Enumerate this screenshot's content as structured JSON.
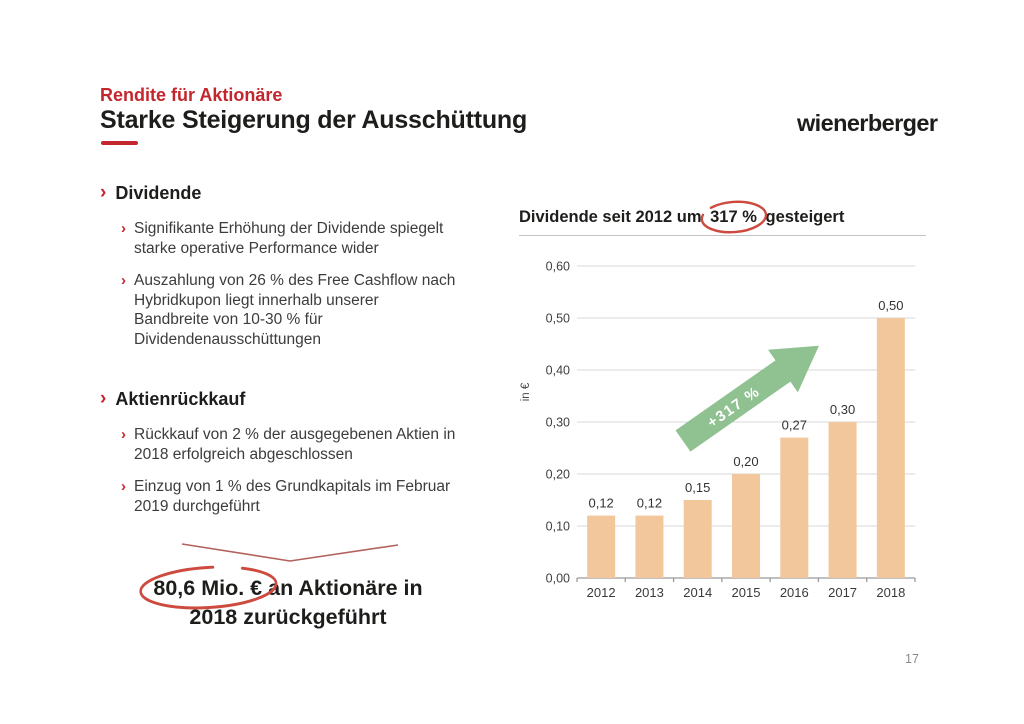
{
  "slide": {
    "kicker": "Rendite für Aktionäre",
    "title": "Starke Steigerung der Ausschüttung",
    "logo": "wienerberger",
    "page_number": "17"
  },
  "colors": {
    "accent_red": "#c4262d",
    "annotation_red": "#cd4a3e",
    "bar_orange": "#f2c79c",
    "arrow_green": "#8fc191"
  },
  "sections": [
    {
      "heading": "Dividende",
      "chevron": "›",
      "bullets": [
        [
          "Signifikante Erhöhung der Dividende spiegelt",
          "starke operative Performance wider"
        ],
        [
          "Auszahlung von 26 % des Free Cashflow nach",
          "Hybridkupon liegt innerhalb unserer",
          "Bandbreite von 10-30 % für",
          "Dividendenausschüttungen"
        ]
      ]
    },
    {
      "heading": "Aktienrückkauf",
      "chevron": "›",
      "bullets": [
        [
          "Rückkauf von 2 % der ausgegebenen Aktien in",
          "2018 erfolgreich abgeschlossen"
        ],
        [
          "Einzug von 1 % des Grundkapitals im Februar",
          "2019 durchgeführt"
        ]
      ]
    }
  ],
  "callout": {
    "highlight": "80,6 Mio. €",
    "line1_rest": "an Aktionäre in",
    "line2": "2018 zurückgeführt"
  },
  "chart_data": {
    "type": "bar",
    "title_prefix": "Dividende seit 2012 um",
    "title_highlight": "317 %",
    "title_suffix": "gesteigert",
    "categories": [
      "2012",
      "2013",
      "2014",
      "2015",
      "2016",
      "2017",
      "2018"
    ],
    "values": [
      0.12,
      0.12,
      0.15,
      0.2,
      0.27,
      0.3,
      0.5
    ],
    "value_labels": [
      "0,12",
      "0,12",
      "0,15",
      "0,20",
      "0,27",
      "0,30",
      "0,50"
    ],
    "ylabel": "in €",
    "ytick_labels": [
      "0,00",
      "0,10",
      "0,20",
      "0,30",
      "0,40",
      "0,50",
      "0,60"
    ],
    "ylim": [
      0,
      0.6
    ],
    "grid": true,
    "legend": "none",
    "annotation": "+317 %",
    "bar_color": "#f2c79c",
    "arrow_color": "#8fc191"
  }
}
